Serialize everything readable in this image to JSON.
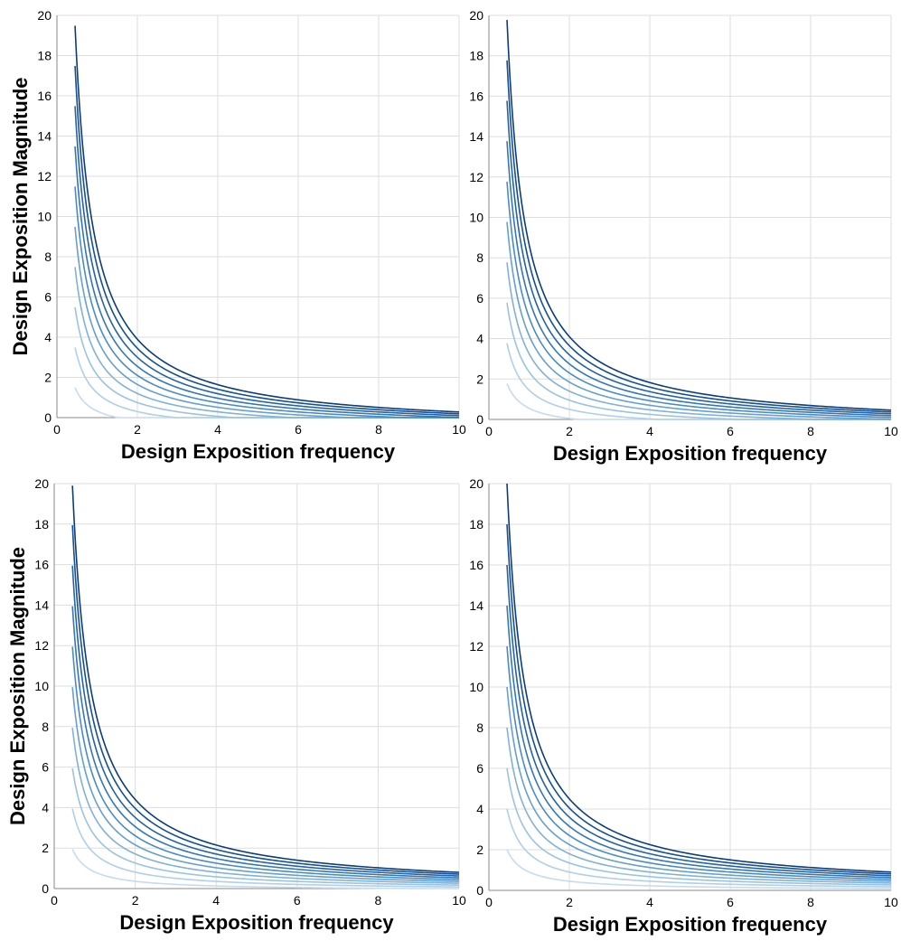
{
  "chart_data": [
    {
      "type": "line",
      "xlabel": "Design Exposition frequency",
      "ylabel": "Design Exposition Magnitude",
      "xlim": [
        0,
        10
      ],
      "ylim": [
        0,
        20
      ],
      "xticks": [
        0,
        2,
        4,
        6,
        8,
        10
      ],
      "yticks": [
        0,
        2,
        4,
        6,
        8,
        10,
        12,
        14,
        16,
        18,
        20
      ],
      "grid": true,
      "x_start": 0.45,
      "family": {
        "form": "A / x - B, clipped at 0",
        "B": 0.625,
        "A_values": [
          0.95,
          1.85,
          2.75,
          3.65,
          4.55,
          5.45,
          6.35,
          7.25,
          8.15,
          9.05
        ]
      },
      "colors": [
        "#c6dbef",
        "#b0cfe8",
        "#9ac3e1",
        "#80b1d8",
        "#65a0cf",
        "#4a8cc2",
        "#3477b4",
        "#2563a3",
        "#16508f",
        "#0b3d7a"
      ]
    },
    {
      "type": "line",
      "xlabel": "Design Exposition frequency",
      "ylabel": "",
      "xlim": [
        0,
        10
      ],
      "ylim": [
        0,
        20
      ],
      "xticks": [
        0,
        2,
        4,
        6,
        8,
        10
      ],
      "yticks": [
        0,
        2,
        4,
        6,
        8,
        10,
        12,
        14,
        16,
        18,
        20
      ],
      "grid": true,
      "x_start": 0.45,
      "family": {
        "form": "A / x - B, clipped at 0",
        "B": 0.45,
        "A_values": [
          1.0,
          1.9,
          2.8,
          3.7,
          4.6,
          5.5,
          6.4,
          7.3,
          8.2,
          9.1
        ]
      },
      "colors": [
        "#c6dbef",
        "#b0cfe8",
        "#9ac3e1",
        "#80b1d8",
        "#65a0cf",
        "#4a8cc2",
        "#3477b4",
        "#2563a3",
        "#16508f",
        "#0b3d7a"
      ]
    },
    {
      "type": "line",
      "xlabel": "Design Exposition frequency",
      "ylabel": "Design Exposition Magnitude",
      "xlim": [
        0,
        10
      ],
      "ylim": [
        0,
        20
      ],
      "xticks": [
        0,
        2,
        4,
        6,
        8,
        10
      ],
      "yticks": [
        0,
        2,
        4,
        6,
        8,
        10,
        12,
        14,
        16,
        18,
        20
      ],
      "grid": true,
      "x_start": 0.45,
      "family": {
        "form": "A / x - B, clipped at 0",
        "B": 0.1,
        "A_values": [
          0.92,
          1.82,
          2.72,
          3.62,
          4.52,
          5.42,
          6.32,
          7.22,
          8.12,
          9.0
        ]
      },
      "colors": [
        "#c6dbef",
        "#b0cfe8",
        "#9ac3e1",
        "#80b1d8",
        "#65a0cf",
        "#4a8cc2",
        "#3477b4",
        "#2563a3",
        "#16508f",
        "#0b3d7a"
      ]
    },
    {
      "type": "line",
      "xlabel": "Design Exposition frequency",
      "ylabel": "",
      "xlim": [
        0,
        10
      ],
      "ylim": [
        0,
        20
      ],
      "xticks": [
        0,
        2,
        4,
        6,
        8,
        10
      ],
      "yticks": [
        0,
        2,
        4,
        6,
        8,
        10,
        12,
        14,
        16,
        18,
        20
      ],
      "grid": true,
      "x_start": 0.45,
      "family": {
        "form": "A / x - B, clipped at 0",
        "B": 0.0,
        "A_values": [
          0.9,
          1.8,
          2.7,
          3.6,
          4.5,
          5.4,
          6.3,
          7.2,
          8.1,
          9.0
        ]
      },
      "colors": [
        "#c6dbef",
        "#b0cfe8",
        "#9ac3e1",
        "#80b1d8",
        "#65a0cf",
        "#4a8cc2",
        "#3477b4",
        "#2563a3",
        "#16508f",
        "#0b3d7a"
      ]
    }
  ]
}
